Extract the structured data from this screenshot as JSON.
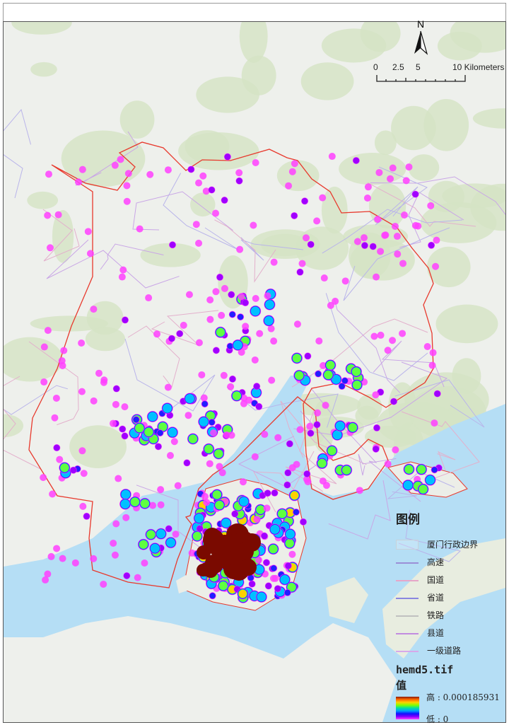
{
  "map": {
    "north_arrow_label": "N",
    "scale_bar": {
      "ticks": [
        "0",
        "2.5",
        "5",
        "10 Kilometers"
      ]
    },
    "colors": {
      "sea": "#b5def5",
      "land": "#eef0ec",
      "forest": "#d4e3c4",
      "boundary": "#e8392d",
      "heat_low": "#ff40ff",
      "heat_high": "#7a0a00"
    }
  },
  "legend": {
    "title": "图例",
    "items": [
      {
        "label": "厦门行政边界",
        "symbol": "boundary-box",
        "color": "#c8d2da"
      },
      {
        "label": "高速",
        "symbol": "line",
        "color": "#9b8fd6"
      },
      {
        "label": "国道",
        "symbol": "line",
        "color": "#e6a6c8"
      },
      {
        "label": "省道",
        "symbol": "line",
        "color": "#8a86e0"
      },
      {
        "label": "铁路",
        "symbol": "line",
        "color": "#c0c0c0"
      },
      {
        "label": "县道",
        "symbol": "line",
        "color": "#c28ce0"
      },
      {
        "label": "一级道路",
        "symbol": "line",
        "color": "#d7a8ea"
      }
    ],
    "raster": {
      "name": "hemd5.tif",
      "field": "值",
      "high_label": "高 : 0.000185931",
      "low_label": "低 : 0"
    }
  }
}
